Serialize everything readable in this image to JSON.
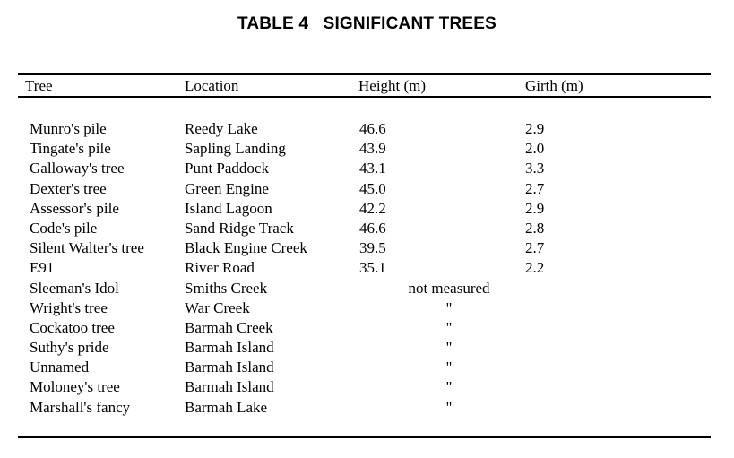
{
  "title": "TABLE 4   SIGNIFICANT TREES",
  "table": {
    "columns": {
      "tree": "Tree",
      "location": "Location",
      "height": "Height (m)",
      "girth": "Girth (m)"
    },
    "not_measured_label": "not measured",
    "ditto_mark": "\"",
    "rows": [
      {
        "tree": "Munro's pile",
        "location": "Reedy Lake",
        "height": "46.6",
        "girth": "2.9"
      },
      {
        "tree": "Tingate's pile",
        "location": "Sapling Landing",
        "height": "43.9",
        "girth": "2.0"
      },
      {
        "tree": "Galloway's tree",
        "location": "Punt Paddock",
        "height": "43.1",
        "girth": "3.3"
      },
      {
        "tree": "Dexter's tree",
        "location": "Green Engine",
        "height": "45.0",
        "girth": "2.7"
      },
      {
        "tree": "Assessor's pile",
        "location": "Island Lagoon",
        "height": "42.2",
        "girth": "2.9"
      },
      {
        "tree": "Code's pile",
        "location": "Sand Ridge Track",
        "height": "46.6",
        "girth": "2.8"
      },
      {
        "tree": "Silent Walter's tree",
        "location": "Black Engine Creek",
        "height": "39.5",
        "girth": "2.7"
      },
      {
        "tree": "E91",
        "location": "River Road",
        "height": "35.1",
        "girth": "2.2"
      },
      {
        "tree": "Sleeman's Idol",
        "location": "Smiths Creek",
        "height": "not measured",
        "girth": ""
      },
      {
        "tree": "Wright's tree",
        "location": "War Creek",
        "height": "\"",
        "girth": ""
      },
      {
        "tree": "Cockatoo tree",
        "location": "Barmah Creek",
        "height": "\"",
        "girth": ""
      },
      {
        "tree": "Suthy's pride",
        "location": "Barmah Island",
        "height": "\"",
        "girth": ""
      },
      {
        "tree": "Unnamed",
        "location": "Barmah Island",
        "height": "\"",
        "girth": ""
      },
      {
        "tree": "Moloney's tree",
        "location": "Barmah Island",
        "height": "\"",
        "girth": ""
      },
      {
        "tree": "Marshall's fancy",
        "location": "Barmah Lake",
        "height": "\"",
        "girth": ""
      }
    ]
  }
}
